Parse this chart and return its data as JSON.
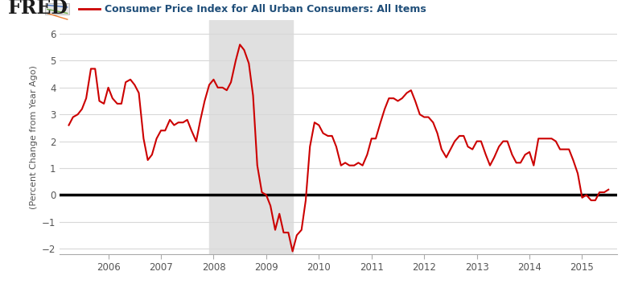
{
  "title": "Consumer Price Index for All Urban Consumers: All Items",
  "ylabel": "(Percent Change from Year Ago)",
  "line_color": "#cc0000",
  "zero_line_color": "#000000",
  "background_color": "#ffffff",
  "plot_bg_color": "#ffffff",
  "grid_color": "#d8d8d8",
  "recession_shade_color": "#e0e0e0",
  "recession_start": 2007.917,
  "recession_end": 2009.5,
  "ylim": [
    -2.2,
    6.5
  ],
  "yticks": [
    -2,
    -1,
    0,
    1,
    2,
    3,
    4,
    5,
    6
  ],
  "xlim": [
    2005.08,
    2015.67
  ],
  "xticks": [
    2006,
    2007,
    2008,
    2009,
    2010,
    2011,
    2012,
    2013,
    2014,
    2015
  ],
  "data": [
    [
      2005.25,
      2.6
    ],
    [
      2005.33,
      2.9
    ],
    [
      2005.42,
      3.0
    ],
    [
      2005.5,
      3.2
    ],
    [
      2005.58,
      3.6
    ],
    [
      2005.67,
      4.7
    ],
    [
      2005.75,
      4.7
    ],
    [
      2005.83,
      3.5
    ],
    [
      2005.917,
      3.4
    ],
    [
      2006.0,
      4.0
    ],
    [
      2006.08,
      3.6
    ],
    [
      2006.17,
      3.4
    ],
    [
      2006.25,
      3.4
    ],
    [
      2006.33,
      4.2
    ],
    [
      2006.42,
      4.3
    ],
    [
      2006.5,
      4.1
    ],
    [
      2006.58,
      3.8
    ],
    [
      2006.67,
      2.1
    ],
    [
      2006.75,
      1.3
    ],
    [
      2006.83,
      1.5
    ],
    [
      2006.917,
      2.1
    ],
    [
      2007.0,
      2.4
    ],
    [
      2007.08,
      2.4
    ],
    [
      2007.17,
      2.8
    ],
    [
      2007.25,
      2.6
    ],
    [
      2007.33,
      2.7
    ],
    [
      2007.42,
      2.7
    ],
    [
      2007.5,
      2.8
    ],
    [
      2007.58,
      2.4
    ],
    [
      2007.67,
      2.0
    ],
    [
      2007.75,
      2.8
    ],
    [
      2007.83,
      3.5
    ],
    [
      2007.917,
      4.1
    ],
    [
      2008.0,
      4.3
    ],
    [
      2008.08,
      4.0
    ],
    [
      2008.17,
      4.0
    ],
    [
      2008.25,
      3.9
    ],
    [
      2008.33,
      4.2
    ],
    [
      2008.42,
      5.0
    ],
    [
      2008.5,
      5.6
    ],
    [
      2008.58,
      5.4
    ],
    [
      2008.67,
      4.9
    ],
    [
      2008.75,
      3.7
    ],
    [
      2008.83,
      1.1
    ],
    [
      2008.917,
      0.1
    ],
    [
      2009.0,
      0.0
    ],
    [
      2009.08,
      -0.4
    ],
    [
      2009.17,
      -1.3
    ],
    [
      2009.25,
      -0.7
    ],
    [
      2009.33,
      -1.4
    ],
    [
      2009.42,
      -1.4
    ],
    [
      2009.5,
      -2.1
    ],
    [
      2009.58,
      -1.5
    ],
    [
      2009.67,
      -1.3
    ],
    [
      2009.75,
      -0.2
    ],
    [
      2009.83,
      1.8
    ],
    [
      2009.917,
      2.7
    ],
    [
      2010.0,
      2.6
    ],
    [
      2010.08,
      2.3
    ],
    [
      2010.17,
      2.2
    ],
    [
      2010.25,
      2.2
    ],
    [
      2010.33,
      1.8
    ],
    [
      2010.42,
      1.1
    ],
    [
      2010.5,
      1.2
    ],
    [
      2010.58,
      1.1
    ],
    [
      2010.67,
      1.1
    ],
    [
      2010.75,
      1.2
    ],
    [
      2010.83,
      1.1
    ],
    [
      2010.917,
      1.5
    ],
    [
      2011.0,
      2.1
    ],
    [
      2011.08,
      2.1
    ],
    [
      2011.17,
      2.7
    ],
    [
      2011.25,
      3.2
    ],
    [
      2011.33,
      3.6
    ],
    [
      2011.42,
      3.6
    ],
    [
      2011.5,
      3.5
    ],
    [
      2011.58,
      3.6
    ],
    [
      2011.67,
      3.8
    ],
    [
      2011.75,
      3.9
    ],
    [
      2011.83,
      3.5
    ],
    [
      2011.917,
      3.0
    ],
    [
      2012.0,
      2.9
    ],
    [
      2012.08,
      2.9
    ],
    [
      2012.17,
      2.7
    ],
    [
      2012.25,
      2.3
    ],
    [
      2012.33,
      1.7
    ],
    [
      2012.42,
      1.4
    ],
    [
      2012.5,
      1.7
    ],
    [
      2012.58,
      2.0
    ],
    [
      2012.67,
      2.2
    ],
    [
      2012.75,
      2.2
    ],
    [
      2012.83,
      1.8
    ],
    [
      2012.917,
      1.7
    ],
    [
      2013.0,
      2.0
    ],
    [
      2013.08,
      2.0
    ],
    [
      2013.17,
      1.5
    ],
    [
      2013.25,
      1.1
    ],
    [
      2013.33,
      1.4
    ],
    [
      2013.42,
      1.8
    ],
    [
      2013.5,
      2.0
    ],
    [
      2013.58,
      2.0
    ],
    [
      2013.67,
      1.5
    ],
    [
      2013.75,
      1.2
    ],
    [
      2013.83,
      1.2
    ],
    [
      2013.917,
      1.5
    ],
    [
      2014.0,
      1.6
    ],
    [
      2014.08,
      1.1
    ],
    [
      2014.17,
      2.1
    ],
    [
      2014.25,
      2.1
    ],
    [
      2014.33,
      2.1
    ],
    [
      2014.42,
      2.1
    ],
    [
      2014.5,
      2.0
    ],
    [
      2014.58,
      1.7
    ],
    [
      2014.67,
      1.7
    ],
    [
      2014.75,
      1.7
    ],
    [
      2014.83,
      1.3
    ],
    [
      2014.917,
      0.8
    ],
    [
      2015.0,
      -0.1
    ],
    [
      2015.08,
      0.0
    ],
    [
      2015.17,
      -0.2
    ],
    [
      2015.25,
      -0.2
    ],
    [
      2015.33,
      0.1
    ],
    [
      2015.42,
      0.1
    ],
    [
      2015.5,
      0.2
    ]
  ]
}
